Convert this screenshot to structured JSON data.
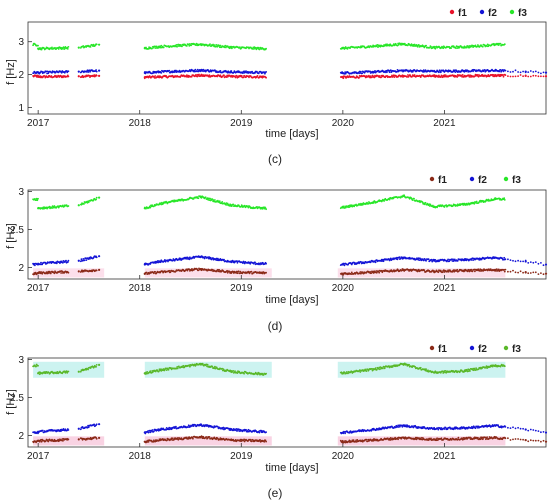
{
  "chart_data": [
    {
      "type": "scatter",
      "caption": "(c)",
      "title": "",
      "xlabel": "time [days]",
      "ylabel": "f [Hz]",
      "x_ticks": [
        "2017",
        "2018",
        "2019",
        "2020",
        "2021"
      ],
      "x_tick_values": [
        2017,
        2018,
        2019,
        2020,
        2021
      ],
      "xlim": [
        2016.9,
        2022.0
      ],
      "y_ticks": [
        "1",
        "2",
        "3"
      ],
      "y_tick_values": [
        1,
        2,
        3
      ],
      "ylim": [
        0.8,
        3.6
      ],
      "legend": {
        "placement": "top-right",
        "labels": [
          "f1",
          "f2",
          "f3"
        ]
      },
      "series": [
        {
          "name": "f1",
          "color": "#e8122a",
          "x": [
            2017.0,
            2017.4,
            2017.6,
            2018.05,
            2018.2,
            2018.6,
            2018.9,
            2019.2,
            2020.0,
            2020.3,
            2020.6,
            2020.9,
            2021.2,
            2021.5,
            2021.8,
            2022.0
          ],
          "y": [
            1.93,
            1.95,
            1.96,
            1.92,
            1.93,
            1.97,
            1.94,
            1.93,
            1.92,
            1.94,
            1.96,
            1.95,
            1.96,
            1.97,
            1.96,
            1.95
          ]
        },
        {
          "name": "f2",
          "color": "#1414d6",
          "x": [
            2017.0,
            2017.4,
            2017.6,
            2018.05,
            2018.2,
            2018.6,
            2018.9,
            2019.2,
            2020.0,
            2020.3,
            2020.6,
            2020.9,
            2021.2,
            2021.5,
            2021.8,
            2022.0
          ],
          "y": [
            2.06,
            2.09,
            2.12,
            2.05,
            2.08,
            2.13,
            2.08,
            2.06,
            2.05,
            2.08,
            2.12,
            2.1,
            2.11,
            2.12,
            2.09,
            2.06
          ]
        },
        {
          "name": "f3",
          "color": "#28e628",
          "x": [
            2017.0,
            2017.4,
            2017.6,
            2018.05,
            2018.2,
            2018.6,
            2018.9,
            2019.2,
            2020.0,
            2020.3,
            2020.6,
            2020.9,
            2021.2,
            2021.5
          ],
          "y": [
            2.79,
            2.82,
            2.91,
            2.8,
            2.85,
            2.92,
            2.83,
            2.79,
            2.8,
            2.86,
            2.93,
            2.82,
            2.84,
            2.91
          ]
        }
      ]
    },
    {
      "type": "scatter",
      "caption": "(d)",
      "title": "",
      "xlabel": "time [days]",
      "ylabel": "f [Hz]",
      "x_ticks": [
        "2017",
        "2018",
        "2019",
        "2020",
        "2021"
      ],
      "x_tick_values": [
        2017,
        2018,
        2019,
        2020,
        2021
      ],
      "xlim": [
        2016.9,
        2022.0
      ],
      "y_ticks": [
        "2",
        "2.5",
        "3"
      ],
      "y_tick_values": [
        2,
        2.5,
        3
      ],
      "ylim": [
        1.85,
        3.02
      ],
      "legend": {
        "placement": "top-right",
        "labels": [
          "f1",
          "f2",
          "f3"
        ]
      },
      "series": [
        {
          "name": "f1",
          "color": "#8b2a18",
          "x": [
            2017.0,
            2017.4,
            2017.6,
            2018.05,
            2018.2,
            2018.6,
            2018.9,
            2019.2,
            2020.0,
            2020.3,
            2020.6,
            2020.9,
            2021.2,
            2021.5,
            2021.8,
            2022.0
          ],
          "y": [
            1.93,
            1.95,
            1.97,
            1.92,
            1.94,
            1.98,
            1.94,
            1.93,
            1.92,
            1.94,
            1.97,
            1.95,
            1.96,
            1.97,
            1.94,
            1.92
          ]
        },
        {
          "name": "f2",
          "color": "#1414d6",
          "x": [
            2017.0,
            2017.4,
            2017.6,
            2018.05,
            2018.2,
            2018.6,
            2018.9,
            2019.2,
            2020.0,
            2020.3,
            2020.6,
            2020.9,
            2021.2,
            2021.5,
            2021.8,
            2022.0
          ],
          "y": [
            2.05,
            2.09,
            2.15,
            2.04,
            2.08,
            2.14,
            2.08,
            2.05,
            2.04,
            2.08,
            2.13,
            2.09,
            2.1,
            2.13,
            2.08,
            2.04
          ]
        },
        {
          "name": "f3",
          "color": "#28e628",
          "x": [
            2017.0,
            2017.4,
            2017.6,
            2018.05,
            2018.2,
            2018.6,
            2018.9,
            2019.2,
            2020.0,
            2020.3,
            2020.6,
            2020.9,
            2021.2,
            2021.5
          ],
          "y": [
            2.78,
            2.82,
            2.92,
            2.78,
            2.84,
            2.93,
            2.82,
            2.78,
            2.79,
            2.86,
            2.94,
            2.8,
            2.83,
            2.9
          ]
        }
      ]
    },
    {
      "type": "scatter",
      "caption": "(e)",
      "title": "",
      "xlabel": "time [days]",
      "ylabel": "f [Hz]",
      "x_ticks": [
        "2017",
        "2018",
        "2019",
        "2020",
        "2021"
      ],
      "x_tick_values": [
        2017,
        2018,
        2019,
        2020,
        2021
      ],
      "xlim": [
        2016.9,
        2022.0
      ],
      "y_ticks": [
        "2",
        "2.5",
        "3"
      ],
      "y_tick_values": [
        2,
        2.5,
        3
      ],
      "ylim": [
        1.85,
        3.02
      ],
      "legend": {
        "placement": "top-right",
        "labels": [
          "f1",
          "f2",
          "f3"
        ]
      },
      "series": [
        {
          "name": "f1",
          "color": "#8b2a18",
          "x": [
            2017.0,
            2017.4,
            2017.6,
            2018.05,
            2018.2,
            2018.6,
            2018.9,
            2019.2,
            2020.0,
            2020.3,
            2020.6,
            2020.9,
            2021.2,
            2021.5,
            2021.8,
            2022.0
          ],
          "y": [
            1.93,
            1.95,
            1.97,
            1.92,
            1.94,
            1.98,
            1.94,
            1.93,
            1.92,
            1.94,
            1.97,
            1.95,
            1.96,
            1.97,
            1.94,
            1.92
          ]
        },
        {
          "name": "f2",
          "color": "#1414d6",
          "x": [
            2017.0,
            2017.4,
            2017.6,
            2018.05,
            2018.2,
            2018.6,
            2018.9,
            2019.2,
            2020.0,
            2020.3,
            2020.6,
            2020.9,
            2021.2,
            2021.5,
            2021.8,
            2022.0
          ],
          "y": [
            2.05,
            2.09,
            2.15,
            2.04,
            2.08,
            2.14,
            2.08,
            2.05,
            2.04,
            2.08,
            2.13,
            2.09,
            2.1,
            2.13,
            2.08,
            2.04
          ]
        },
        {
          "name": "f3",
          "color": "#5ab82a",
          "x": [
            2017.0,
            2017.4,
            2017.6,
            2018.05,
            2018.2,
            2018.6,
            2018.9,
            2019.2,
            2020.0,
            2020.3,
            2020.6,
            2020.9,
            2021.2,
            2021.5
          ],
          "y": [
            2.82,
            2.84,
            2.93,
            2.82,
            2.86,
            2.94,
            2.84,
            2.81,
            2.82,
            2.87,
            2.94,
            2.83,
            2.85,
            2.92
          ]
        }
      ]
    }
  ]
}
